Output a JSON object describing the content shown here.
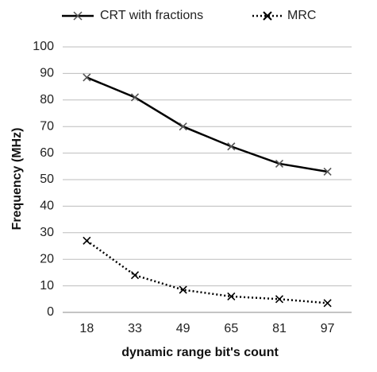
{
  "chart_data": {
    "type": "line",
    "xlabel": "dynamic range bit's count",
    "ylabel": "Frequency (MHz)",
    "categories": [
      "18",
      "33",
      "49",
      "65",
      "81",
      "97"
    ],
    "ylim": [
      0,
      100
    ],
    "yticks": [
      "0",
      "10",
      "20",
      "30",
      "40",
      "50",
      "60",
      "70",
      "80",
      "90",
      "100"
    ],
    "grid": "horizontal",
    "legend_position": "top",
    "series": [
      {
        "name": "CRT with fractions",
        "style": "solid",
        "marker": "x",
        "color": "#000000",
        "values": [
          88.5,
          81,
          70,
          62.5,
          56,
          53
        ]
      },
      {
        "name": "MRC",
        "style": "dotted",
        "marker": "x",
        "color": "#000000",
        "values": [
          27,
          14,
          8.5,
          6,
          5,
          3.5
        ]
      }
    ]
  }
}
